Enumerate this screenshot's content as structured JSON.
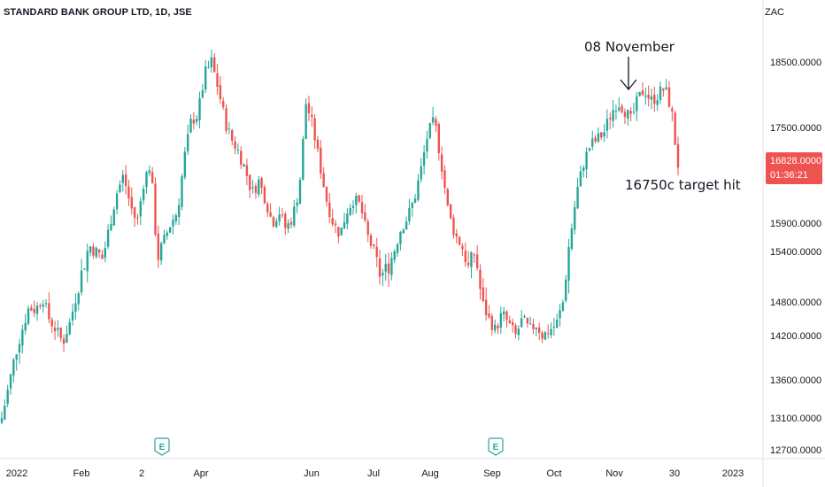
{
  "header": {
    "title": "STANDARD BANK GROUP LTD, 1D, JSE",
    "currency": "ZAC"
  },
  "colors": {
    "up": "#26a69a",
    "down": "#ef5350",
    "price_tag": "#ef5350",
    "text": "#131722",
    "axis": "#e0e3eb"
  },
  "chart_data": {
    "type": "candlestick",
    "yaxis_ticks": [
      18500.0,
      17500.0,
      15900.0,
      15400.0,
      14800.0,
      14200.0,
      13600.0,
      13100.0,
      12700.0
    ],
    "ytick_labels": [
      "18500.0000",
      "17500.0000",
      "15900.0000",
      "15400.0000",
      "14800.0000",
      "14200.0000",
      "13600.0000",
      "13100.0000",
      "12700.0000"
    ],
    "xaxis_labels": [
      "2022",
      "Feb",
      "2",
      "Apr",
      "Jun",
      "Jul",
      "Aug",
      "Sep",
      "Oct",
      "Nov",
      "30",
      "2023"
    ],
    "last_price": {
      "value": "16828.0000",
      "countdown": "01:36:21"
    },
    "earnings_markers": [
      {
        "label": "E",
        "near": "Mar"
      },
      {
        "label": "E",
        "near": "Sep"
      }
    ],
    "annotations": [
      {
        "text": "08 November"
      },
      {
        "text": "16750c target hit"
      }
    ],
    "price_path": [
      13100,
      13500,
      13950,
      14300,
      14700,
      14650,
      14900,
      14500,
      14300,
      14100,
      14400,
      14900,
      15200,
      15500,
      15400,
      15300,
      15900,
      16400,
      16700,
      16200,
      15900,
      16600,
      16900,
      15300,
      15600,
      15900,
      16100,
      17000,
      17600,
      17700,
      18300,
      18500,
      18100,
      17600,
      17300,
      17100,
      16800,
      16400,
      16600,
      16300,
      15900,
      16100,
      15800,
      16000,
      16500,
      17900,
      17500,
      16900,
      16300,
      15900,
      15700,
      16100,
      16300,
      16200,
      15700,
      15400,
      15100,
      15200,
      15400,
      15800,
      16000,
      16300,
      16800,
      17400,
      17600,
      16900,
      16100,
      15700,
      15500,
      15200,
      15400,
      14800,
      14500,
      14300,
      14600,
      14400,
      14200,
      14500,
      14300,
      14400,
      14200,
      14300,
      14400,
      14800,
      15600,
      16400,
      16900,
      17200,
      17300,
      17400,
      17700,
      17900,
      17800,
      17600,
      17900,
      18100,
      17900,
      18000,
      18100,
      17800,
      16828
    ]
  }
}
